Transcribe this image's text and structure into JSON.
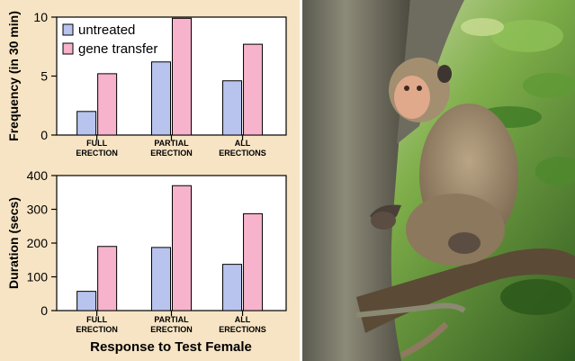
{
  "figure": {
    "xlabel": "Response to Test Female"
  },
  "legend": {
    "entries": [
      {
        "label": "untreated",
        "color": "#b8c4ee"
      },
      {
        "label": "gene transfer",
        "color": "#f6b3cb"
      }
    ],
    "placement": "top-left"
  },
  "photo": {
    "subject": "macaque monkey sitting on tree branch",
    "description": "Photograph of a long-tailed macaque seated in a tree with green foliage"
  },
  "chart_data": [
    {
      "type": "bar",
      "ylabel": "Frequency (in 30 min)",
      "categories": [
        [
          "FULL",
          "ERECTION"
        ],
        [
          "PARTIAL",
          "ERECTION"
        ],
        [
          "ALL",
          "ERECTIONS"
        ]
      ],
      "series": [
        {
          "name": "untreated",
          "values": [
            2.0,
            6.2,
            4.6
          ]
        },
        {
          "name": "gene transfer",
          "values": [
            5.2,
            9.9,
            7.7
          ]
        }
      ],
      "ylim": [
        0,
        10
      ],
      "yticks": [
        0,
        5,
        10
      ],
      "grid": false
    },
    {
      "type": "bar",
      "ylabel": "Duration (secs)",
      "categories": [
        [
          "FULL",
          "ERECTION"
        ],
        [
          "PARTIAL",
          "ERECTION"
        ],
        [
          "ALL",
          "ERECTIONS"
        ]
      ],
      "series": [
        {
          "name": "untreated",
          "values": [
            57,
            187,
            137
          ]
        },
        {
          "name": "gene transfer",
          "values": [
            190,
            370,
            287
          ]
        }
      ],
      "ylim": [
        0,
        400
      ],
      "yticks": [
        0,
        100,
        200,
        300,
        400
      ],
      "grid": false
    }
  ]
}
